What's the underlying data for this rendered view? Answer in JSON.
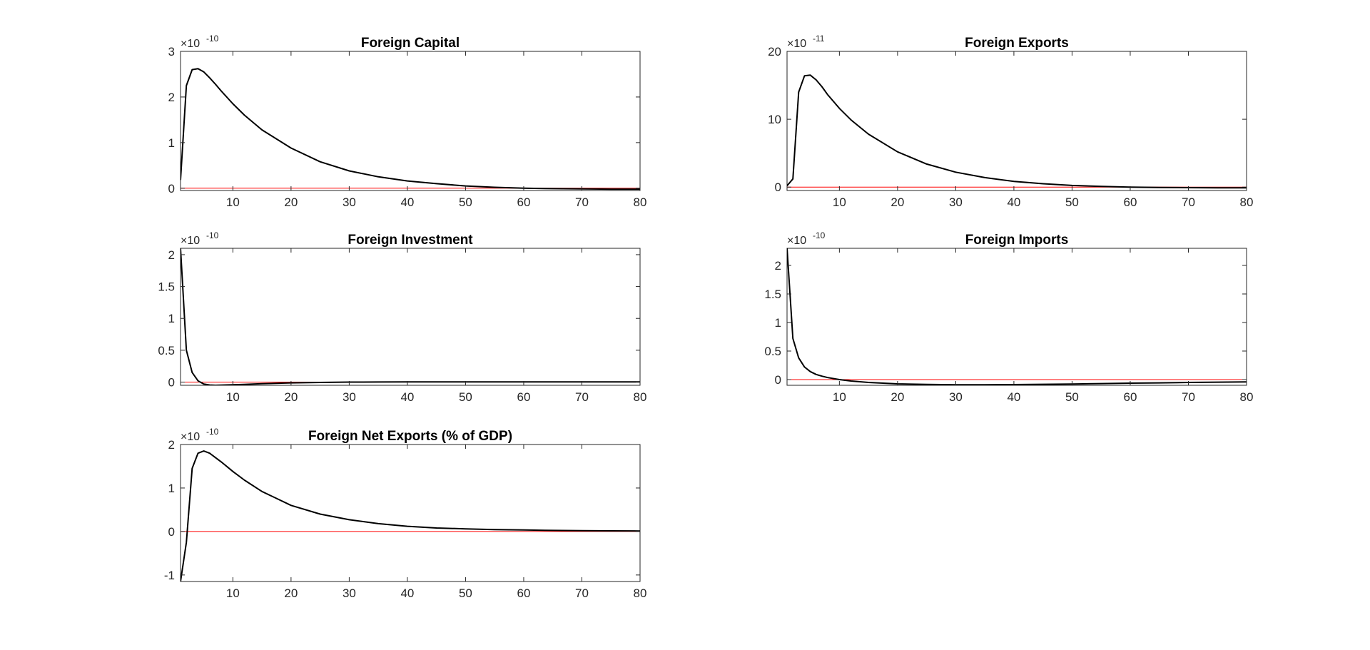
{
  "chart_data": [
    {
      "type": "line",
      "title": "Foreign Capital",
      "exponent_label": "×10",
      "exponent_power": "-10",
      "xlim": [
        1,
        80
      ],
      "ylim": [
        -0.05,
        3
      ],
      "xticks": [
        10,
        20,
        30,
        40,
        50,
        60,
        70,
        80
      ],
      "xtick_labels": [
        "10",
        "20",
        "30",
        "40",
        "50",
        "60",
        "70",
        "80"
      ],
      "yticks": [
        0,
        1,
        2,
        3
      ],
      "ytick_labels": [
        "0",
        "1",
        "2",
        "3"
      ],
      "zero_line_color": "#ff0000",
      "line_color": "#000000",
      "x": [
        1,
        2,
        3,
        4,
        5,
        6,
        7,
        8,
        10,
        12,
        15,
        20,
        25,
        30,
        35,
        40,
        45,
        50,
        55,
        60,
        65,
        70,
        75,
        80
      ],
      "y": [
        0.18,
        2.25,
        2.6,
        2.62,
        2.55,
        2.42,
        2.28,
        2.13,
        1.85,
        1.6,
        1.28,
        0.88,
        0.58,
        0.38,
        0.25,
        0.16,
        0.1,
        0.05,
        0.02,
        0.0,
        -0.01,
        -0.015,
        -0.02,
        -0.02
      ]
    },
    {
      "type": "line",
      "title": "Foreign Exports",
      "exponent_label": "×10",
      "exponent_power": "-11",
      "xlim": [
        1,
        80
      ],
      "ylim": [
        -0.5,
        20
      ],
      "xticks": [
        10,
        20,
        30,
        40,
        50,
        60,
        70,
        80
      ],
      "xtick_labels": [
        "10",
        "20",
        "30",
        "40",
        "50",
        "60",
        "70",
        "80"
      ],
      "yticks": [
        0,
        10,
        20
      ],
      "ytick_labels": [
        "0",
        "10",
        "20"
      ],
      "zero_line_color": "#ff0000",
      "line_color": "#000000",
      "x": [
        1,
        2,
        3,
        4,
        5,
        6,
        7,
        8,
        10,
        12,
        15,
        20,
        25,
        30,
        35,
        40,
        45,
        50,
        55,
        60,
        65,
        70,
        75,
        80
      ],
      "y": [
        0.2,
        1.2,
        14,
        16.4,
        16.5,
        15.8,
        14.8,
        13.6,
        11.6,
        9.9,
        7.8,
        5.2,
        3.4,
        2.2,
        1.4,
        0.85,
        0.5,
        0.25,
        0.1,
        0.0,
        -0.05,
        -0.08,
        -0.1,
        -0.1
      ]
    },
    {
      "type": "line",
      "title": "Foreign Investment",
      "exponent_label": "×10",
      "exponent_power": "-10",
      "xlim": [
        1,
        80
      ],
      "ylim": [
        -0.05,
        2.1
      ],
      "xticks": [
        10,
        20,
        30,
        40,
        50,
        60,
        70,
        80
      ],
      "xtick_labels": [
        "10",
        "20",
        "30",
        "40",
        "50",
        "60",
        "70",
        "80"
      ],
      "yticks": [
        0,
        0.5,
        1,
        1.5,
        2
      ],
      "ytick_labels": [
        "0",
        "0.5",
        "1",
        "1.5",
        "2"
      ],
      "zero_line_color": "#ff0000",
      "line_color": "#000000",
      "x": [
        1,
        2,
        3,
        4,
        5,
        6,
        7,
        8,
        10,
        12,
        15,
        20,
        25,
        30,
        35,
        40,
        45,
        50,
        55,
        60,
        65,
        70,
        75,
        80
      ],
      "y": [
        2.1,
        0.5,
        0.15,
        0.02,
        -0.03,
        -0.045,
        -0.05,
        -0.048,
        -0.042,
        -0.035,
        -0.025,
        -0.012,
        -0.005,
        0.0,
        0.002,
        0.003,
        0.003,
        0.003,
        0.003,
        0.003,
        0.003,
        0.003,
        0.003,
        0.003
      ]
    },
    {
      "type": "line",
      "title": "Foreign Imports",
      "exponent_label": "×10",
      "exponent_power": "-10",
      "xlim": [
        1,
        80
      ],
      "ylim": [
        -0.1,
        2.3
      ],
      "xticks": [
        10,
        20,
        30,
        40,
        50,
        60,
        70,
        80
      ],
      "xtick_labels": [
        "10",
        "20",
        "30",
        "40",
        "50",
        "60",
        "70",
        "80"
      ],
      "yticks": [
        0,
        0.5,
        1,
        1.5,
        2
      ],
      "ytick_labels": [
        "0",
        "0.5",
        "1",
        "1.5",
        "2"
      ],
      "zero_line_color": "#ff0000",
      "line_color": "#000000",
      "x": [
        1,
        2,
        3,
        4,
        5,
        6,
        7,
        8,
        10,
        12,
        15,
        20,
        25,
        30,
        35,
        40,
        45,
        50,
        55,
        60,
        65,
        70,
        75,
        80
      ],
      "y": [
        2.3,
        0.72,
        0.38,
        0.22,
        0.14,
        0.09,
        0.06,
        0.035,
        0.0,
        -0.025,
        -0.05,
        -0.075,
        -0.085,
        -0.09,
        -0.09,
        -0.088,
        -0.083,
        -0.077,
        -0.07,
        -0.063,
        -0.057,
        -0.05,
        -0.045,
        -0.04
      ]
    },
    {
      "type": "line",
      "title": "Foreign Net Exports (% of GDP)",
      "exponent_label": "×10",
      "exponent_power": "-10",
      "xlim": [
        1,
        80
      ],
      "ylim": [
        -1.15,
        2
      ],
      "xticks": [
        10,
        20,
        30,
        40,
        50,
        60,
        70,
        80
      ],
      "xtick_labels": [
        "10",
        "20",
        "30",
        "40",
        "50",
        "60",
        "70",
        "80"
      ],
      "yticks": [
        -1,
        0,
        1,
        2
      ],
      "ytick_labels": [
        "-1",
        "0",
        "1",
        "2"
      ],
      "zero_line_color": "#ff0000",
      "line_color": "#000000",
      "x": [
        1,
        2,
        3,
        4,
        5,
        6,
        7,
        8,
        10,
        12,
        15,
        20,
        25,
        30,
        35,
        40,
        45,
        50,
        55,
        60,
        65,
        70,
        75,
        80
      ],
      "y": [
        -1.15,
        -0.25,
        1.45,
        1.8,
        1.85,
        1.8,
        1.7,
        1.6,
        1.38,
        1.18,
        0.92,
        0.6,
        0.4,
        0.27,
        0.18,
        0.12,
        0.08,
        0.06,
        0.045,
        0.035,
        0.025,
        0.02,
        0.015,
        0.012
      ]
    }
  ]
}
